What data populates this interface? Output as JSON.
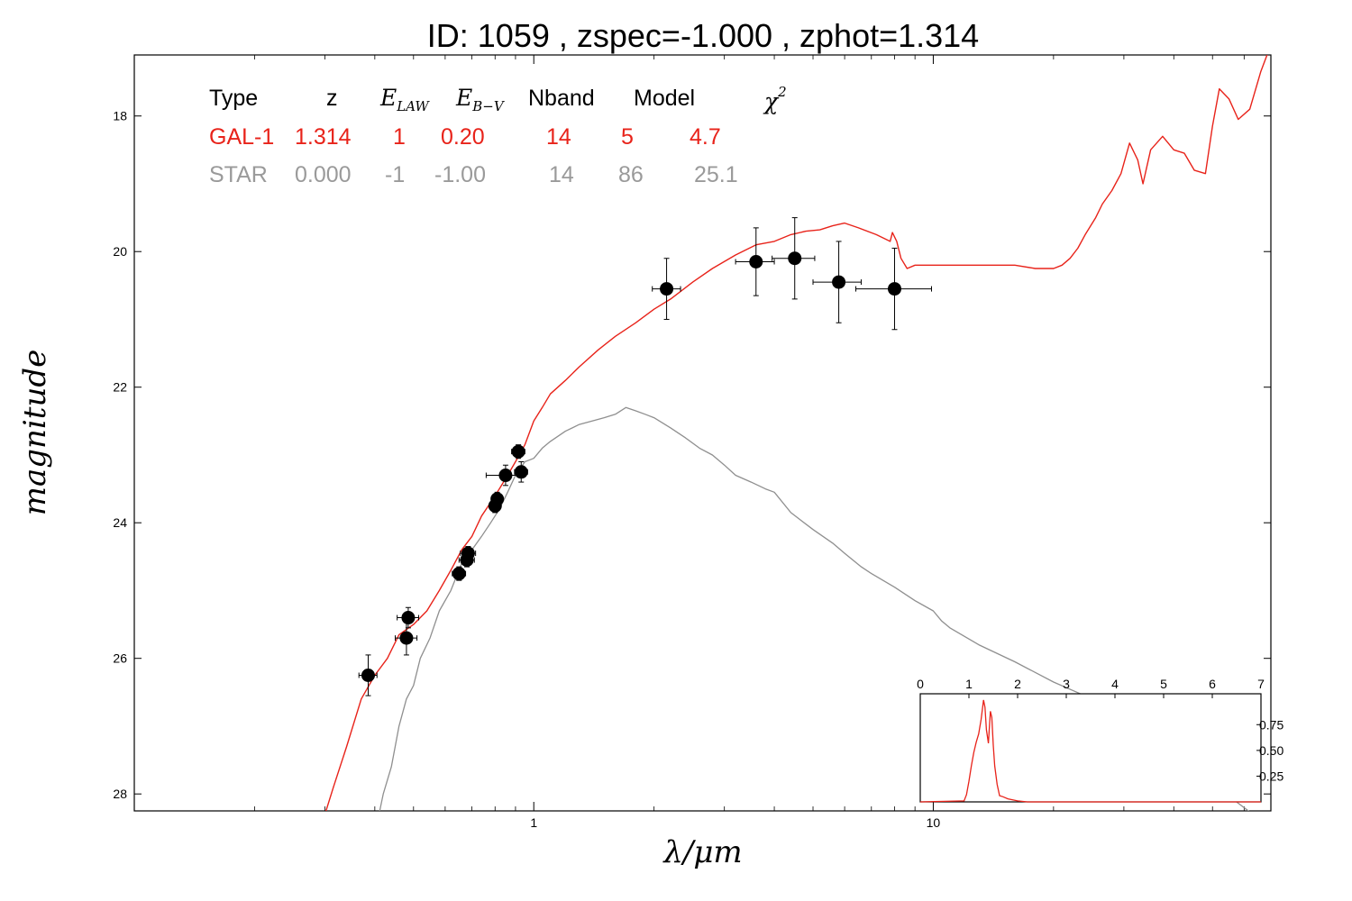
{
  "chart_data": [
    {
      "type": "line",
      "title": "ID:  1059  , zspec=-1.000 , zphot=1.314",
      "xlabel": "λ/μm",
      "ylabel": "magnitude",
      "x_scale": "log",
      "xlim": [
        0.1,
        70
      ],
      "ylim": [
        28.25,
        17.1
      ],
      "y_inverted": true,
      "xticks": [
        {
          "value": 1,
          "label": "1"
        },
        {
          "value": 10,
          "label": "10"
        }
      ],
      "yticks": [
        {
          "value": 18,
          "label": "18"
        },
        {
          "value": 20,
          "label": "20"
        },
        {
          "value": 22,
          "label": "22"
        },
        {
          "value": 24,
          "label": "24"
        },
        {
          "value": 26,
          "label": "26"
        },
        {
          "value": 28,
          "label": "28"
        }
      ],
      "colors": {
        "galaxy": "#e8231a",
        "star": "#8f8f8f",
        "points": "#000000"
      },
      "series": [
        {
          "name": "GAL-1",
          "color": "#e8231a",
          "x": [
            0.3,
            0.315,
            0.34,
            0.37,
            0.4,
            0.43,
            0.46,
            0.5,
            0.54,
            0.58,
            0.62,
            0.66,
            0.7,
            0.74,
            0.78,
            0.82,
            0.86,
            0.9,
            0.95,
            1.0,
            1.05,
            1.1,
            1.2,
            1.3,
            1.45,
            1.6,
            1.8,
            2.0,
            2.2,
            2.5,
            2.8,
            3.2,
            3.6,
            4.0,
            4.4,
            4.8,
            5.2,
            5.6,
            6.0,
            6.5,
            7.2,
            7.8,
            7.9,
            8.1,
            8.3,
            8.6,
            9.0,
            10.0,
            11.0,
            12.0,
            14.0,
            16.0,
            18.0,
            20.0,
            21.0,
            22.0,
            23.0,
            24.0,
            25.5,
            26.5,
            28.0,
            29.5,
            31.0,
            32.5,
            33.5,
            35.0,
            37.5,
            40.0,
            42.5,
            45.0,
            48.0,
            50.0,
            52.0,
            55.0,
            58.0,
            62.0,
            66.0,
            70.0
          ],
          "y": [
            28.3,
            27.9,
            27.3,
            26.6,
            26.25,
            26.0,
            25.65,
            25.5,
            25.3,
            25.0,
            24.7,
            24.4,
            24.2,
            23.9,
            23.7,
            23.5,
            23.3,
            23.1,
            22.85,
            22.5,
            22.3,
            22.1,
            21.9,
            21.7,
            21.45,
            21.25,
            21.05,
            20.85,
            20.7,
            20.45,
            20.25,
            20.05,
            19.9,
            19.85,
            19.75,
            19.7,
            19.68,
            19.62,
            19.58,
            19.65,
            19.75,
            19.85,
            19.72,
            19.85,
            20.1,
            20.25,
            20.2,
            20.2,
            20.2,
            20.2,
            20.2,
            20.2,
            20.25,
            20.25,
            20.2,
            20.1,
            19.95,
            19.75,
            19.5,
            19.3,
            19.1,
            18.85,
            18.4,
            18.65,
            19.0,
            18.5,
            18.3,
            18.5,
            18.55,
            18.8,
            18.85,
            18.15,
            17.6,
            17.75,
            18.05,
            17.9,
            17.35,
            16.95
          ]
        },
        {
          "name": "STAR",
          "color": "#8f8f8f",
          "x": [
            0.4,
            0.42,
            0.44,
            0.46,
            0.48,
            0.5,
            0.52,
            0.55,
            0.58,
            0.62,
            0.66,
            0.7,
            0.74,
            0.78,
            0.82,
            0.86,
            0.9,
            0.95,
            1.0,
            1.05,
            1.1,
            1.2,
            1.3,
            1.4,
            1.5,
            1.6,
            1.7,
            1.8,
            1.9,
            2.0,
            2.2,
            2.4,
            2.6,
            2.8,
            3.0,
            3.2,
            3.5,
            3.8,
            4.0,
            4.4,
            5.0,
            5.6,
            6.0,
            6.6,
            7.0,
            8.0,
            9.0,
            10.0,
            10.5,
            11.0,
            13.0,
            16.0,
            20.0,
            25.0,
            30.0,
            40.0,
            50.0,
            70.0
          ],
          "y": [
            28.6,
            28.0,
            27.6,
            27.0,
            26.6,
            26.4,
            26.0,
            25.7,
            25.3,
            25.0,
            24.6,
            24.4,
            24.2,
            24.0,
            23.8,
            23.55,
            23.3,
            23.1,
            23.05,
            22.9,
            22.8,
            22.65,
            22.55,
            22.5,
            22.45,
            22.4,
            22.3,
            22.35,
            22.4,
            22.45,
            22.6,
            22.75,
            22.9,
            23.0,
            23.15,
            23.3,
            23.4,
            23.5,
            23.55,
            23.85,
            24.1,
            24.3,
            24.45,
            24.65,
            24.75,
            24.95,
            25.15,
            25.3,
            25.45,
            25.55,
            25.8,
            26.05,
            26.35,
            26.6,
            26.9,
            27.35,
            27.85,
            28.5
          ]
        }
      ],
      "points": [
        {
          "x": 0.385,
          "xerr": [
            0.365,
            0.405
          ],
          "y": 26.25,
          "yerr": 0.3
        },
        {
          "x": 0.485,
          "xerr": [
            0.455,
            0.515
          ],
          "y": 25.4,
          "yerr": 0.15
        },
        {
          "x": 0.48,
          "xerr": [
            0.45,
            0.51
          ],
          "y": 25.7,
          "yerr": 0.25
        },
        {
          "x": 0.65,
          "xerr": [
            0.625,
            0.675
          ],
          "y": 24.75,
          "yerr": 0.1
        },
        {
          "x": 0.685,
          "xerr": [
            0.655,
            0.715
          ],
          "y": 24.45,
          "yerr": 0.1
        },
        {
          "x": 0.68,
          "xerr": [
            0.65,
            0.71
          ],
          "y": 24.55,
          "yerr": 0.1
        },
        {
          "x": 0.8,
          "xerr": [
            0.775,
            0.825
          ],
          "y": 23.75,
          "yerr": 0.1
        },
        {
          "x": 0.81,
          "xerr": [
            0.785,
            0.835
          ],
          "y": 23.65,
          "yerr": 0.1
        },
        {
          "x": 0.85,
          "xerr": [
            0.76,
            0.94
          ],
          "y": 23.3,
          "yerr": 0.15
        },
        {
          "x": 0.915,
          "xerr": [
            0.88,
            0.95
          ],
          "y": 22.95,
          "yerr": 0.1
        },
        {
          "x": 0.93,
          "xerr": [
            0.895,
            0.965
          ],
          "y": 23.25,
          "yerr": 0.15
        },
        {
          "x": 2.15,
          "xerr": [
            1.98,
            2.33
          ],
          "y": 20.55,
          "yerr": 0.45
        },
        {
          "x": 3.6,
          "xerr": [
            3.2,
            4.0
          ],
          "y": 20.15,
          "yerr": 0.5
        },
        {
          "x": 4.5,
          "xerr": [
            3.95,
            5.05
          ],
          "y": 20.1,
          "yerr": 0.6
        },
        {
          "x": 5.8,
          "xerr": [
            5.0,
            6.6
          ],
          "y": 20.45,
          "yerr": 0.6
        },
        {
          "x": 8.0,
          "xerr": [
            6.4,
            9.9
          ],
          "y": 20.55,
          "yerr": 0.6
        }
      ]
    },
    {
      "type": "line",
      "title": "",
      "xlim": [
        0,
        7
      ],
      "ylim": [
        0,
        1.05
      ],
      "xticks": [
        {
          "value": 0,
          "label": "0"
        },
        {
          "value": 1,
          "label": "1"
        },
        {
          "value": 2,
          "label": "2"
        },
        {
          "value": 3,
          "label": "3"
        },
        {
          "value": 4,
          "label": "4"
        },
        {
          "value": 5,
          "label": "5"
        },
        {
          "value": 6,
          "label": "6"
        },
        {
          "value": 7,
          "label": "7"
        }
      ],
      "yticks": [
        {
          "value": 0.25,
          "label": "0.25"
        },
        {
          "value": 0.5,
          "label": "0.50"
        },
        {
          "value": 0.75,
          "label": "0.75"
        }
      ],
      "color": "#e8231a",
      "series": [
        {
          "x": [
            0,
            0.9,
            0.95,
            1.0,
            1.05,
            1.1,
            1.15,
            1.2,
            1.25,
            1.3,
            1.33,
            1.36,
            1.4,
            1.44,
            1.47,
            1.5,
            1.53,
            1.58,
            1.63,
            1.7,
            1.8,
            2.0,
            2.2,
            7.0
          ],
          "y": [
            0,
            0.01,
            0.07,
            0.2,
            0.35,
            0.48,
            0.58,
            0.66,
            0.8,
            0.99,
            0.92,
            0.7,
            0.57,
            0.88,
            0.82,
            0.55,
            0.35,
            0.17,
            0.06,
            0.05,
            0.03,
            0.01,
            0.0,
            0.0
          ]
        }
      ]
    }
  ],
  "table": {
    "headers": {
      "type": "Type",
      "z": "z",
      "elaw": "E",
      "elaw_sub": "LAW",
      "ebv": "E",
      "ebv_sub": "B−V",
      "nband": "Nband",
      "model": "Model",
      "chi": "χ",
      "chi_sup": "2"
    },
    "rows": [
      {
        "type": "GAL-1",
        "z": "1.314",
        "elaw": "1",
        "ebv": "0.20",
        "nband": "14",
        "model": "5",
        "chi2": "4.7",
        "color": "#e8231a"
      },
      {
        "type": "STAR",
        "z": "0.000",
        "elaw": "-1",
        "ebv": "-1.00",
        "nband": "14",
        "model": "86",
        "chi2": "25.1",
        "color": "#9a9a9a"
      }
    ]
  }
}
